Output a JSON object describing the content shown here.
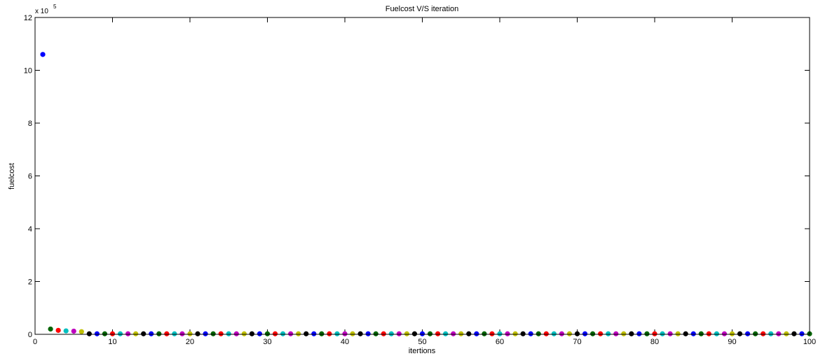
{
  "chart_data": {
    "type": "scatter",
    "title": "Fuelcost V/S iteration",
    "xlabel": "itertions",
    "ylabel": "fuelcost",
    "y_exponent_label": "x 10",
    "y_exponent": "5",
    "xlim": [
      0,
      100
    ],
    "ylim": [
      0,
      12
    ],
    "xticks": [
      "0",
      "10",
      "20",
      "30",
      "40",
      "50",
      "60",
      "70",
      "80",
      "90",
      "100"
    ],
    "yticks": [
      "0",
      "2",
      "4",
      "6",
      "8",
      "10",
      "12"
    ],
    "grid": false,
    "marker_colors": [
      "#0000ff",
      "#006400",
      "#ff0000",
      "#00bfbf",
      "#bf00bf",
      "#bfbf00",
      "#000000"
    ],
    "points": {
      "x": [
        1,
        2,
        3,
        4,
        5,
        6,
        7,
        8,
        9,
        10,
        11,
        12,
        13,
        14,
        15,
        16,
        17,
        18,
        19,
        20,
        21,
        22,
        23,
        24,
        25,
        26,
        27,
        28,
        29,
        30,
        31,
        32,
        33,
        34,
        35,
        36,
        37,
        38,
        39,
        40,
        41,
        42,
        43,
        44,
        45,
        46,
        47,
        48,
        49,
        50,
        51,
        52,
        53,
        54,
        55,
        56,
        57,
        58,
        59,
        60,
        61,
        62,
        63,
        64,
        65,
        66,
        67,
        68,
        69,
        70,
        71,
        72,
        73,
        74,
        75,
        76,
        77,
        78,
        79,
        80,
        81,
        82,
        83,
        84,
        85,
        86,
        87,
        88,
        89,
        90,
        91,
        92,
        93,
        94,
        95,
        96,
        97,
        98,
        99,
        100
      ],
      "y": [
        10.6,
        0.2,
        0.15,
        0.13,
        0.12,
        0.1,
        0.02,
        0.02,
        0.02,
        0.02,
        0.02,
        0.02,
        0.02,
        0.02,
        0.02,
        0.02,
        0.02,
        0.02,
        0.02,
        0.02,
        0.02,
        0.02,
        0.02,
        0.02,
        0.02,
        0.02,
        0.02,
        0.02,
        0.02,
        0.02,
        0.02,
        0.02,
        0.02,
        0.02,
        0.02,
        0.02,
        0.02,
        0.02,
        0.02,
        0.02,
        0.02,
        0.02,
        0.02,
        0.02,
        0.02,
        0.02,
        0.02,
        0.02,
        0.02,
        0.02,
        0.02,
        0.02,
        0.02,
        0.02,
        0.02,
        0.02,
        0.02,
        0.02,
        0.02,
        0.02,
        0.02,
        0.02,
        0.02,
        0.02,
        0.02,
        0.02,
        0.02,
        0.02,
        0.02,
        0.02,
        0.02,
        0.02,
        0.02,
        0.02,
        0.02,
        0.02,
        0.02,
        0.02,
        0.02,
        0.02,
        0.02,
        0.02,
        0.02,
        0.02,
        0.02,
        0.02,
        0.02,
        0.02,
        0.02,
        0.02,
        0.02,
        0.02,
        0.02,
        0.02,
        0.02,
        0.02,
        0.02,
        0.02,
        0.02,
        0.02
      ]
    }
  }
}
